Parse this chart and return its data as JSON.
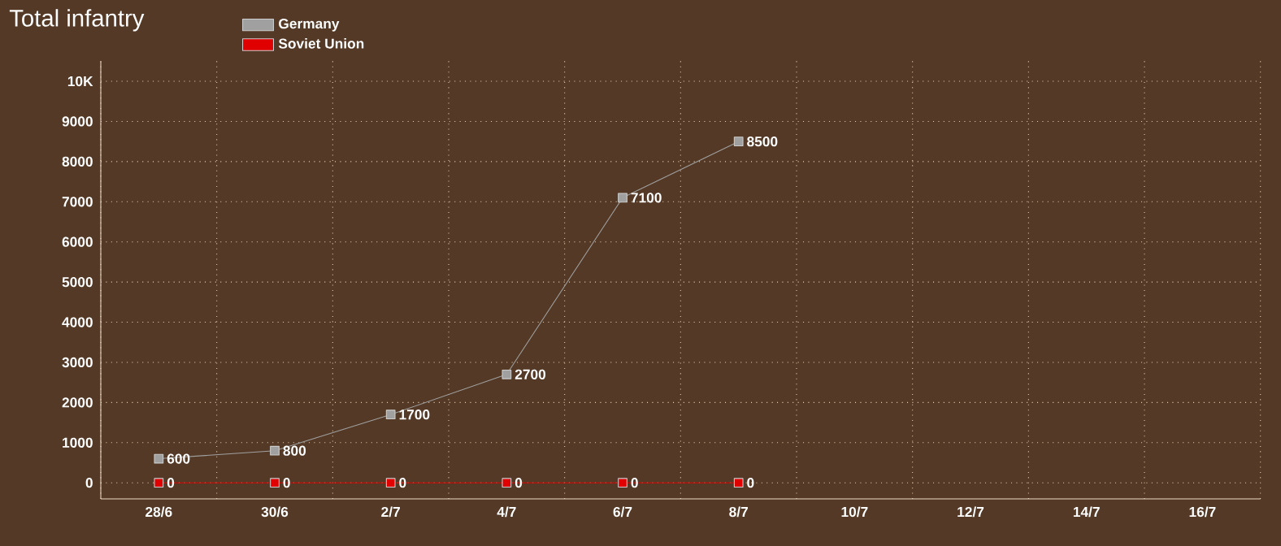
{
  "chart_data": {
    "type": "line",
    "title": "Total infantry",
    "categories": [
      "28/6",
      "30/6",
      "2/7",
      "4/7",
      "6/7",
      "8/7",
      "10/7",
      "12/7",
      "14/7",
      "16/7"
    ],
    "series": [
      {
        "name": "Germany",
        "color": "#a0a0a0",
        "values": [
          600,
          800,
          1700,
          2700,
          7100,
          8500,
          null,
          null,
          null,
          null
        ]
      },
      {
        "name": "Soviet Union",
        "color": "#e00000",
        "values": [
          0,
          0,
          0,
          0,
          0,
          0,
          null,
          null,
          null,
          null
        ]
      }
    ],
    "ylim": [
      -400,
      10500
    ],
    "yticks": [
      0,
      1000,
      2000,
      3000,
      4000,
      5000,
      6000,
      7000,
      8000,
      9000,
      {
        "value": 10000,
        "label": "10K"
      }
    ],
    "grid": true,
    "legend": "top",
    "marker": "square",
    "line_style": "solid",
    "data_labels": true
  }
}
